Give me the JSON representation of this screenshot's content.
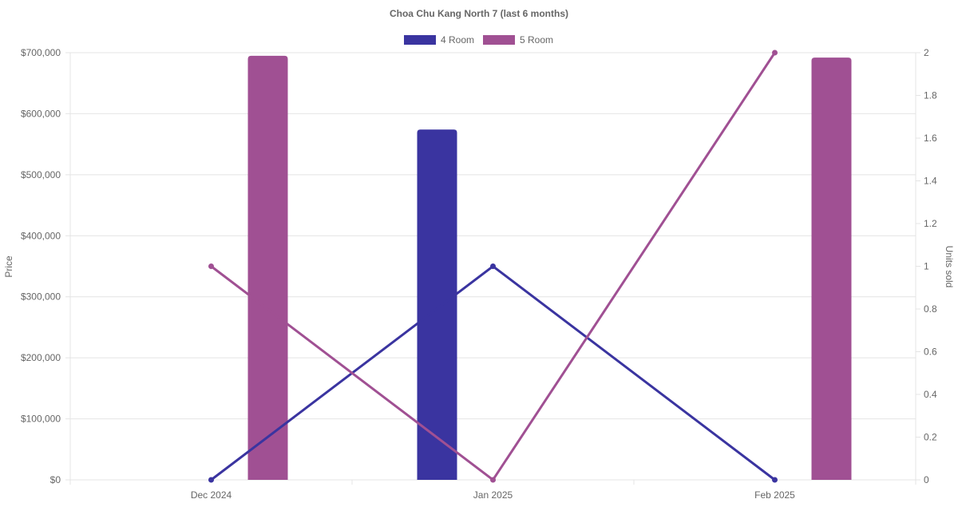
{
  "chart_data": {
    "type": "bar",
    "title": "Choa Chu Kang North 7 (last 6 months)",
    "categories": [
      "Dec 2024",
      "Jan 2025",
      "Feb 2025"
    ],
    "ylabel": "Price",
    "y2label": "Units sold",
    "ylim": [
      0,
      700000
    ],
    "y2lim": [
      0,
      2
    ],
    "yticks": [
      "$0",
      "$100,000",
      "$200,000",
      "$300,000",
      "$400,000",
      "$500,000",
      "$600,000",
      "$700,000"
    ],
    "y2ticks": [
      "0",
      "0.2",
      "0.4",
      "0.6",
      "0.8",
      "1",
      "1.2",
      "1.4",
      "1.6",
      "1.8",
      "2"
    ],
    "legend_position": "top",
    "grid": true,
    "series": [
      {
        "name": "4 Room",
        "color": "#3a34a0",
        "price": [
          null,
          574000,
          null
        ],
        "units_sold": [
          0,
          1,
          0
        ]
      },
      {
        "name": "5 Room",
        "color": "#a05093",
        "price": [
          695000,
          null,
          692000
        ],
        "units_sold": [
          1,
          0,
          2
        ]
      }
    ]
  }
}
